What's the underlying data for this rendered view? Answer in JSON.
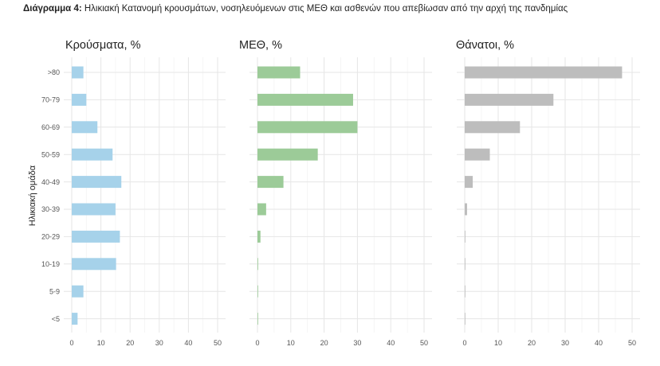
{
  "caption": {
    "label": "Διάγραμμα 4:",
    "text": "Ηλικιακή Κατανομή κρουσμάτων, νοσηλευόμενων στις ΜΕΘ και ασθενών που απεβίωσαν από την αρχή της πανδημίας"
  },
  "chart_data": {
    "type": "bar",
    "orientation": "horizontal",
    "ylabel": "Ηλικιακή ομάδα",
    "categories": [
      ">80",
      "70-79",
      "60-69",
      "50-59",
      "40-49",
      "30-39",
      "20-29",
      "10-19",
      "5-9",
      "<5"
    ],
    "xlim": [
      0,
      50
    ],
    "xticks": [
      0,
      10,
      20,
      30,
      40,
      50
    ],
    "grid": true,
    "panels": [
      {
        "title": "Κρούσματα, %",
        "color": "#a6d2ea",
        "values": [
          4.0,
          5.0,
          8.8,
          14.0,
          17.0,
          15.0,
          16.5,
          15.2,
          4.0,
          2.0
        ]
      },
      {
        "title": "ΜΕΘ, %",
        "color": "#9ccb98",
        "values": [
          12.8,
          28.7,
          30.0,
          18.1,
          7.8,
          2.6,
          0.9,
          0.2,
          0.1,
          0.1
        ]
      },
      {
        "title": "Θάνατοι, %",
        "color": "#bdbdbd",
        "values": [
          47.0,
          26.5,
          16.5,
          7.5,
          2.4,
          0.7,
          0.2,
          0.1,
          0.1,
          0.1
        ]
      }
    ]
  }
}
